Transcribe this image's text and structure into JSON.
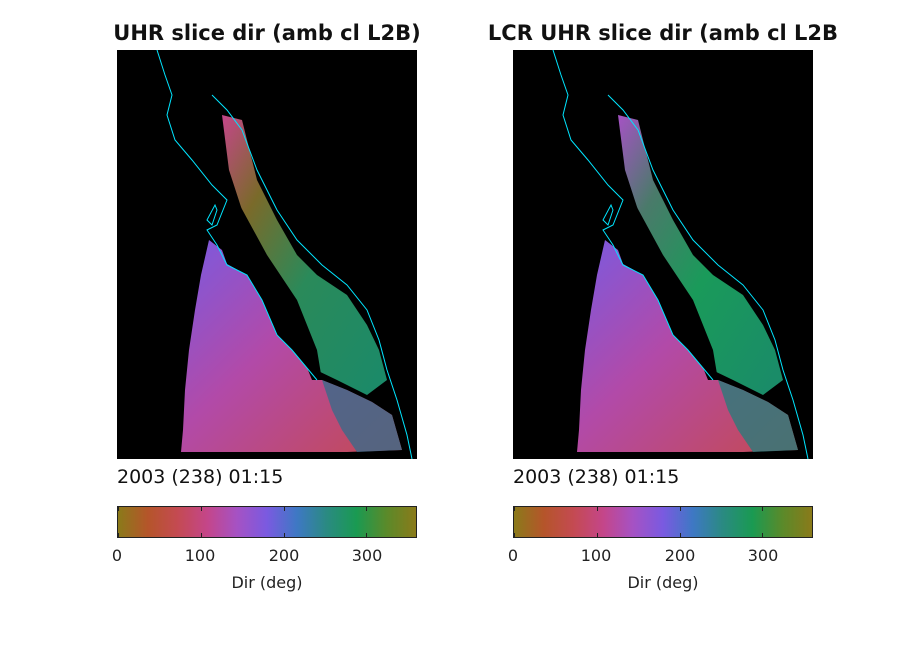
{
  "chart_data": [
    {
      "type": "heatmap",
      "title": "UHR slice dir (amb cl L2B)",
      "annotation": "2003 (238) 01:15",
      "colorbar": {
        "label": "Dir (deg)",
        "range": [
          0,
          360
        ],
        "ticks": [
          0,
          100,
          200,
          300
        ],
        "tick_labels": [
          "0",
          "100",
          "200",
          "300"
        ]
      },
      "colormap": [
        "#8a7a1a",
        "#b5552a",
        "#c44a52",
        "#c4468a",
        "#a552c4",
        "#7a5ae0",
        "#3e78c4",
        "#2a8a82",
        "#1a9a52",
        "#5a8a2a",
        "#8a7a1a"
      ]
    },
    {
      "type": "heatmap",
      "title": "LCR UHR slice dir (amb cl L2B",
      "annotation": "2003 (238) 01:15",
      "colorbar": {
        "label": "Dir (deg)",
        "range": [
          0,
          360
        ],
        "ticks": [
          0,
          100,
          200,
          300
        ],
        "tick_labels": [
          "0",
          "100",
          "200",
          "300"
        ]
      },
      "colormap": [
        "#8a7a1a",
        "#b5552a",
        "#c44a52",
        "#c4468a",
        "#a552c4",
        "#7a5ae0",
        "#3e78c4",
        "#2a8a82",
        "#1a9a52",
        "#5a8a2a",
        "#8a7a1a"
      ]
    }
  ],
  "colors": {
    "coastline": "#00e5ff",
    "background": "#000000"
  }
}
